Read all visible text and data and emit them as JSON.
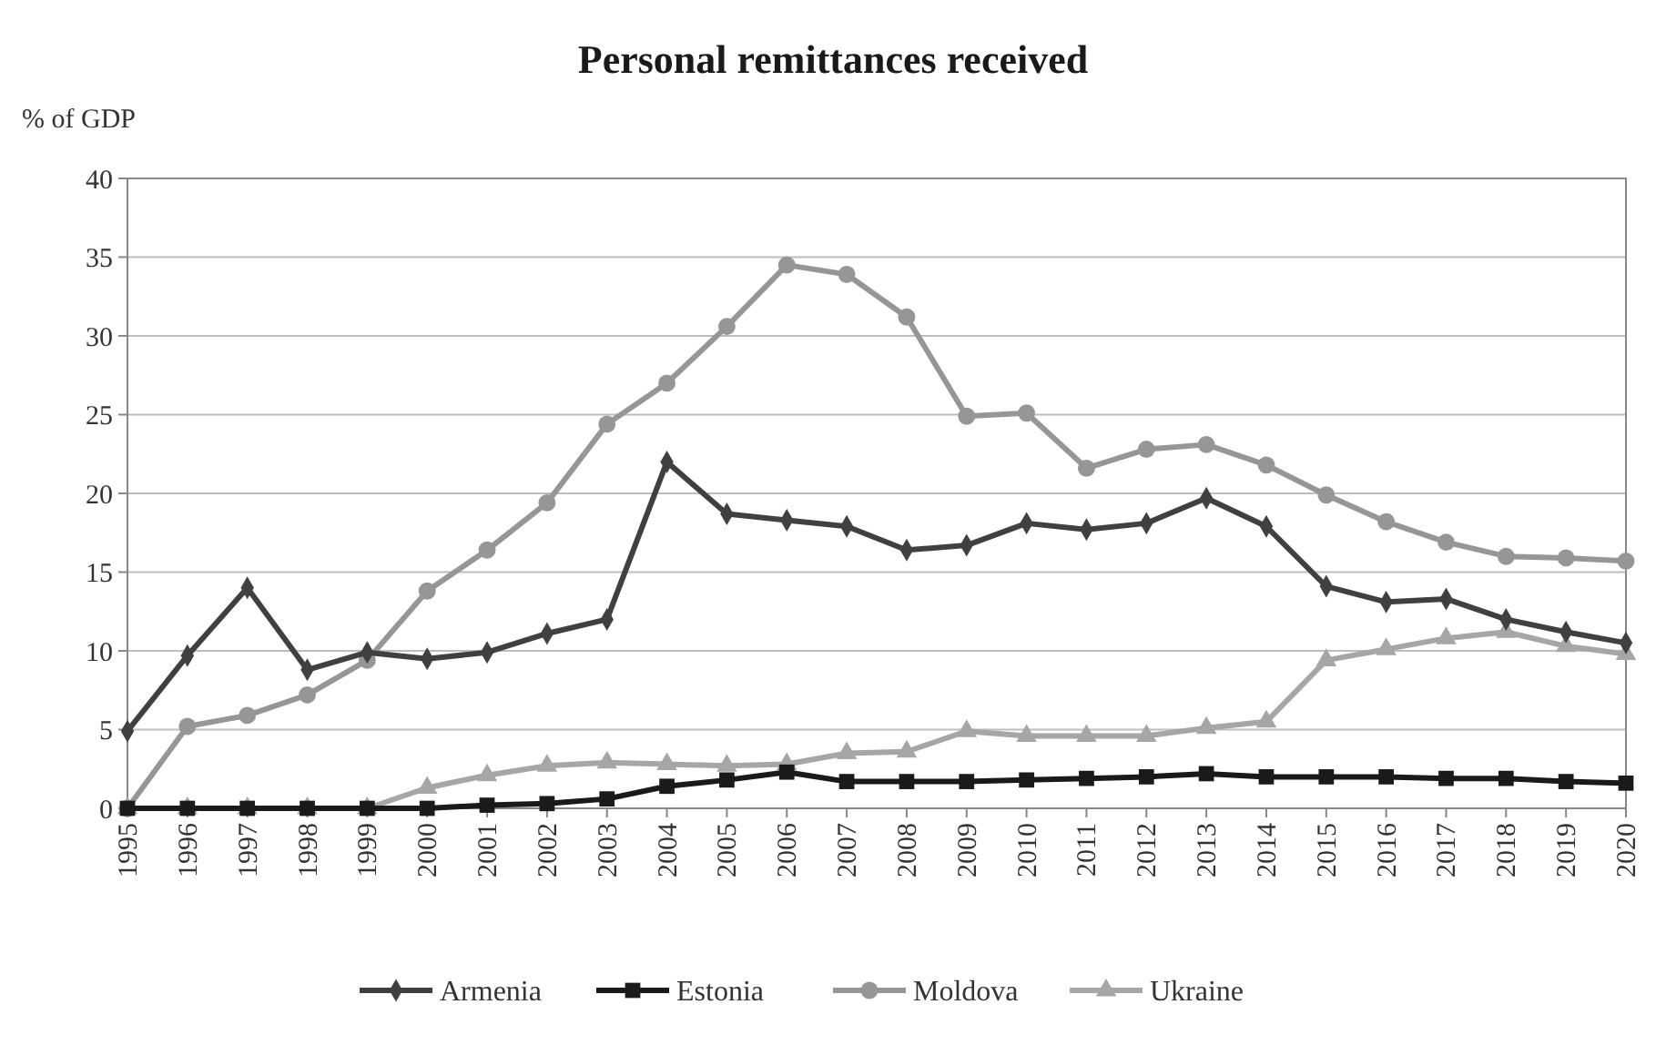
{
  "chart_data": {
    "type": "line",
    "title": "Personal remittances received",
    "ylabel": "% of GDP",
    "categories": [
      "1995",
      "1996",
      "1997",
      "1998",
      "1999",
      "2000",
      "2001",
      "2002",
      "2003",
      "2004",
      "2005",
      "2006",
      "2007",
      "2008",
      "2009",
      "2010",
      "2011",
      "2012",
      "2013",
      "2014",
      "2015",
      "2016",
      "2017",
      "2018",
      "2019",
      "2020"
    ],
    "ylim": [
      0,
      40
    ],
    "yticks": [
      0,
      5,
      10,
      15,
      20,
      25,
      30,
      35,
      40
    ],
    "grid": "y",
    "legend": "bottom",
    "series": [
      {
        "name": "Armenia",
        "color": "#404040",
        "marker": "diamond",
        "values": [
          4.9,
          9.7,
          14.0,
          8.8,
          9.9,
          9.5,
          9.9,
          11.1,
          12.0,
          22.0,
          18.7,
          18.3,
          17.9,
          16.4,
          16.7,
          18.1,
          17.7,
          18.1,
          19.7,
          17.9,
          14.1,
          13.1,
          13.3,
          12.0,
          11.2,
          10.5
        ]
      },
      {
        "name": "Estonia",
        "color": "#1a1a1a",
        "marker": "square",
        "values": [
          0,
          0,
          0,
          0,
          0,
          0,
          0.2,
          0.3,
          0.6,
          1.4,
          1.8,
          2.3,
          1.7,
          1.7,
          1.7,
          1.8,
          1.9,
          2.0,
          2.2,
          2.0,
          2.0,
          2.0,
          1.9,
          1.9,
          1.7,
          1.6
        ]
      },
      {
        "name": "Moldova",
        "color": "#969696",
        "marker": "circle",
        "values": [
          0,
          5.2,
          5.9,
          7.2,
          9.4,
          13.8,
          16.4,
          19.4,
          24.4,
          27.0,
          30.6,
          34.5,
          33.9,
          31.2,
          24.9,
          25.1,
          21.6,
          22.8,
          23.1,
          21.8,
          19.9,
          18.2,
          16.9,
          16.0,
          15.9,
          15.7
        ]
      },
      {
        "name": "Ukraine",
        "color": "#a6a6a6",
        "marker": "triangle",
        "values": [
          0,
          0,
          0,
          0,
          0,
          1.3,
          2.1,
          2.7,
          2.9,
          2.8,
          2.7,
          2.8,
          3.5,
          3.6,
          4.9,
          4.6,
          4.6,
          4.6,
          5.1,
          5.5,
          9.4,
          10.1,
          10.8,
          11.2,
          10.3,
          9.8
        ]
      }
    ]
  }
}
